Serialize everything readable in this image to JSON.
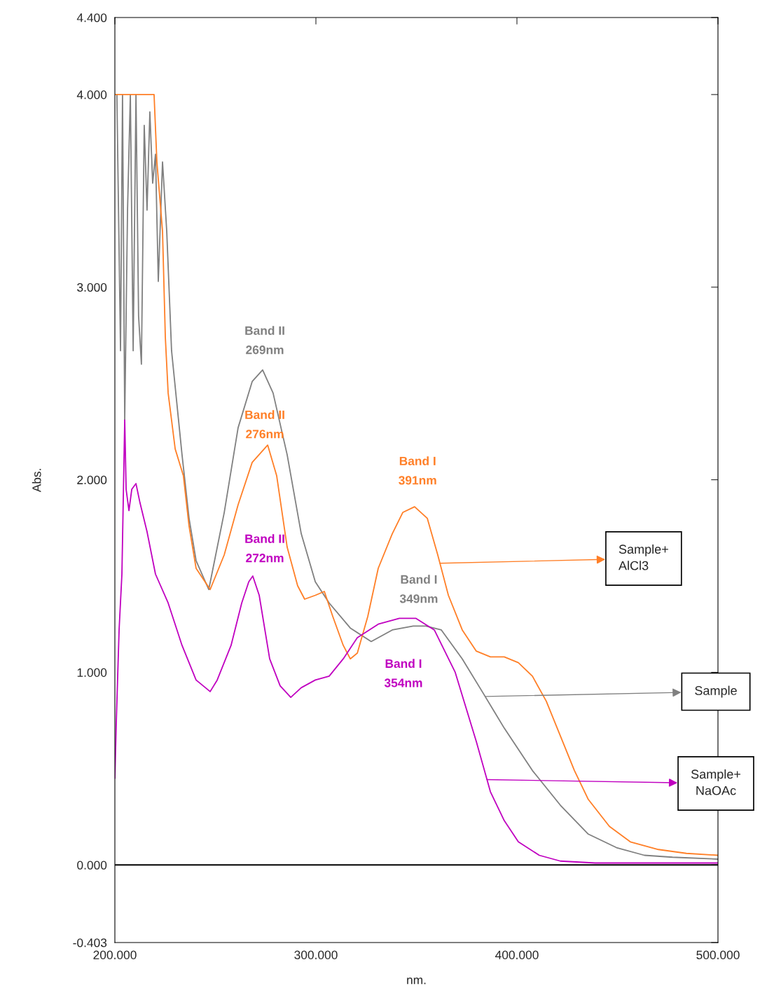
{
  "chart_data": {
    "type": "line",
    "xlabel": "nm.",
    "ylabel": "Abs.",
    "xlim": [
      200,
      500
    ],
    "ylim": [
      -0.403,
      4.4
    ],
    "xticks": [
      {
        "value": 200,
        "label": "200.000"
      },
      {
        "value": 300,
        "label": "300.000"
      },
      {
        "value": 400,
        "label": "400.000"
      },
      {
        "value": 500,
        "label": "500.000"
      }
    ],
    "yticks": [
      {
        "value": -0.403,
        "label": "-0.403"
      },
      {
        "value": 0,
        "label": "0.000"
      },
      {
        "value": 1,
        "label": "1.000"
      },
      {
        "value": 2,
        "label": "2.000"
      },
      {
        "value": 3,
        "label": "3.000"
      },
      {
        "value": 4,
        "label": "4.000"
      },
      {
        "value": 4.4,
        "label": "4.400"
      }
    ],
    "grid": false,
    "legend": "right",
    "ref_lines": [
      {
        "axis": "y",
        "value": 0,
        "color": "#000000"
      }
    ],
    "series": [
      {
        "name": "Sample",
        "color": "#808080",
        "x": [
          201,
          202.8,
          203.8,
          204.9,
          206.3,
          207.7,
          209.1,
          210.5,
          211.8,
          213.2,
          214.6,
          216.0,
          217.4,
          218.8,
          220.2,
          221.6,
          223.7,
          225.8,
          228.2,
          233.4,
          236.9,
          240.4,
          246.7,
          254.4,
          261.3,
          268.3,
          273.5,
          278.7,
          285.7,
          292.7,
          299.7,
          306.6,
          317.1,
          327.5,
          338.0,
          348.4,
          354.7,
          362.4,
          372.8,
          383.3,
          393.7,
          407.7,
          421.6,
          435.5,
          449.5,
          463.4,
          477.4,
          500
        ],
        "values": [
          4.0,
          2.67,
          4.0,
          2.31,
          3.4,
          4.0,
          2.67,
          4.0,
          2.85,
          2.6,
          3.84,
          3.4,
          3.91,
          3.54,
          3.69,
          3.03,
          3.65,
          3.29,
          2.67,
          2.13,
          1.8,
          1.58,
          1.43,
          1.83,
          2.27,
          2.51,
          2.57,
          2.45,
          2.13,
          1.72,
          1.47,
          1.36,
          1.23,
          1.16,
          1.22,
          1.24,
          1.24,
          1.22,
          1.07,
          0.89,
          0.71,
          0.49,
          0.31,
          0.16,
          0.09,
          0.05,
          0.04,
          0.03
        ]
      },
      {
        "name": "Sample+\nAlCl3",
        "color": "#ff7f27",
        "x": [
          200,
          219.5,
          220.9,
          223.7,
          225.1,
          226.5,
          230.0,
          234.1,
          236.9,
          240.4,
          247.4,
          254.4,
          261.3,
          268.3,
          276.0,
          280.5,
          285.7,
          290.9,
          294.4,
          299.7,
          304.2,
          308.4,
          313.6,
          317.1,
          320.6,
          325.8,
          331.0,
          338.0,
          343.2,
          349.1,
          355.4,
          360.6,
          365.9,
          372.8,
          379.8,
          386.8,
          393.7,
          400.7,
          407.7,
          414.6,
          421.6,
          428.6,
          435.5,
          446.0,
          456.4,
          470.4,
          484.3,
          500
        ],
        "values": [
          4.0,
          4.0,
          3.65,
          3.29,
          2.74,
          2.45,
          2.16,
          2.02,
          1.76,
          1.54,
          1.43,
          1.61,
          1.87,
          2.09,
          2.18,
          2.02,
          1.65,
          1.45,
          1.38,
          1.4,
          1.42,
          1.29,
          1.14,
          1.07,
          1.1,
          1.29,
          1.54,
          1.72,
          1.83,
          1.86,
          1.8,
          1.61,
          1.4,
          1.22,
          1.11,
          1.08,
          1.08,
          1.05,
          0.98,
          0.85,
          0.67,
          0.49,
          0.34,
          0.2,
          0.12,
          0.08,
          0.06,
          0.05
        ]
      },
      {
        "name": "Sample+\nNaOAc",
        "color": "#c000c0",
        "x": [
          200,
          200.7,
          202.1,
          203.5,
          204.9,
          205.6,
          207.0,
          208.4,
          210.5,
          212.5,
          216.0,
          220.2,
          226.5,
          233.4,
          240.4,
          247.4,
          250.9,
          257.8,
          263.1,
          266.6,
          268.6,
          271.8,
          277.0,
          282.2,
          287.5,
          292.7,
          299.7,
          306.6,
          313.6,
          320.6,
          331.0,
          341.5,
          349.8,
          358.9,
          369.3,
          379.8,
          386.8,
          393.7,
          400.7,
          411.1,
          421.6,
          439.0,
          500
        ],
        "values": [
          0.45,
          0.74,
          1.22,
          1.51,
          2.31,
          1.95,
          1.84,
          1.95,
          1.98,
          1.88,
          1.73,
          1.51,
          1.36,
          1.14,
          0.96,
          0.9,
          0.96,
          1.14,
          1.36,
          1.47,
          1.5,
          1.4,
          1.07,
          0.93,
          0.87,
          0.92,
          0.96,
          0.98,
          1.07,
          1.18,
          1.25,
          1.28,
          1.28,
          1.22,
          1.0,
          0.64,
          0.38,
          0.23,
          0.12,
          0.05,
          0.02,
          0.01,
          0.01
        ]
      }
    ],
    "annotations": [
      "Band II\n269nm",
      "Band II\n276nm",
      "Band II\n272nm",
      "Band I\n391nm",
      "Band I\n349nm",
      "Band I\n354nm"
    ]
  }
}
